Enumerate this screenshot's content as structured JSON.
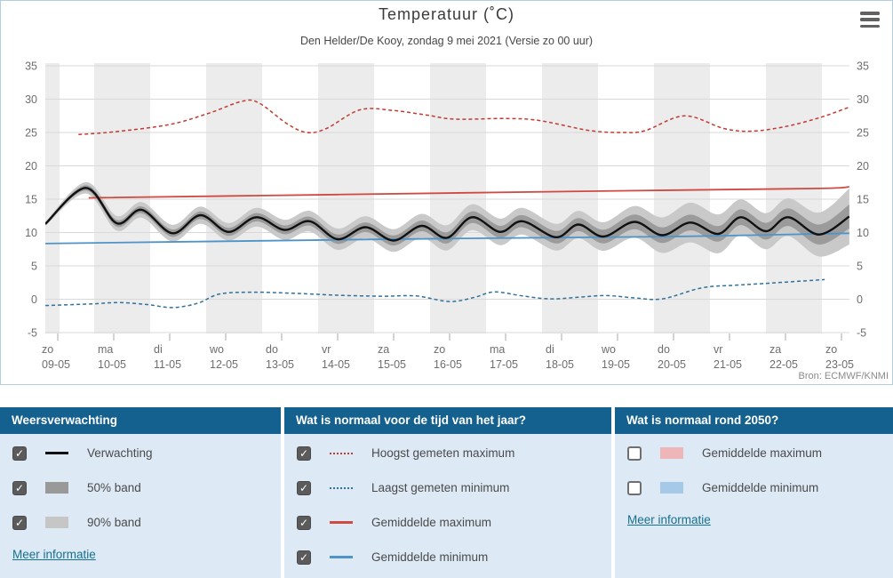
{
  "chart": {
    "title": "Temperatuur (˚C)",
    "subtitle": "Den Helder/De Kooy, zondag 9 mei 2021 (Versie zo 00 uur)",
    "source": "Bron: ECMWF/KNMI"
  },
  "chart_data": {
    "type": "line",
    "title": "Temperatuur (˚C)",
    "subtitle": "Den Helder/De Kooy, zondag 9 mei 2021 (Versie zo 00 uur)",
    "source": "Bron: ECMWF/KNMI",
    "x_unit": "dagen vanaf zo 09-05-2021 00:00",
    "ylim": [
      -5.1,
      35.4
    ],
    "yticks": [
      35,
      30,
      25,
      20,
      15,
      10,
      5,
      0,
      -5
    ],
    "grid": true,
    "stripe_color": "#ececec",
    "gridline_color": "#d9d9d9",
    "categories": [
      {
        "day": "zo",
        "date": "09-05"
      },
      {
        "day": "ma",
        "date": "10-05"
      },
      {
        "day": "di",
        "date": "11-05"
      },
      {
        "day": "wo",
        "date": "12-05"
      },
      {
        "day": "do",
        "date": "13-05"
      },
      {
        "day": "vr",
        "date": "14-05"
      },
      {
        "day": "za",
        "date": "15-05"
      },
      {
        "day": "zo",
        "date": "16-05"
      },
      {
        "day": "ma",
        "date": "17-05"
      },
      {
        "day": "di",
        "date": "18-05"
      },
      {
        "day": "wo",
        "date": "19-05"
      },
      {
        "day": "do",
        "date": "20-05"
      },
      {
        "day": "vr",
        "date": "21-05"
      },
      {
        "day": "za",
        "date": "22-05"
      },
      {
        "day": "zo",
        "date": "23-05"
      }
    ],
    "series": [
      {
        "name": "90% band",
        "type": "band",
        "around": "Verwachting",
        "color": "#c9c9c9",
        "half_width": [
          [
            -0.22,
            0.3
          ],
          [
            0.5,
            0.85
          ],
          [
            1,
            1.1
          ],
          [
            2,
            1.25
          ],
          [
            3,
            1.3
          ],
          [
            4,
            1.5
          ],
          [
            5,
            1.6
          ],
          [
            6,
            1.7
          ],
          [
            7,
            1.9
          ],
          [
            8,
            2.0
          ],
          [
            9,
            2.0
          ],
          [
            10,
            2.2
          ],
          [
            10.7,
            2.6
          ],
          [
            11.5,
            3.1
          ],
          [
            12.3,
            2.6
          ],
          [
            13,
            2.8
          ],
          [
            13.6,
            3.3
          ],
          [
            14.14,
            4.2
          ]
        ]
      },
      {
        "name": "50% band",
        "type": "band",
        "around": "Verwachting",
        "color": "#9b9b9b",
        "half_width": [
          [
            -0.22,
            0.15
          ],
          [
            0.5,
            0.4
          ],
          [
            1,
            0.5
          ],
          [
            2,
            0.55
          ],
          [
            3,
            0.6
          ],
          [
            4,
            0.65
          ],
          [
            5,
            0.7
          ],
          [
            6,
            0.75
          ],
          [
            7,
            0.85
          ],
          [
            8,
            0.9
          ],
          [
            9,
            0.95
          ],
          [
            10,
            1.05
          ],
          [
            11,
            1.2
          ],
          [
            12,
            1.15
          ],
          [
            13,
            1.3
          ],
          [
            13.6,
            1.5
          ],
          [
            14.14,
            1.8
          ]
        ]
      },
      {
        "name": "Hoogst gemeten maximum",
        "type": "line",
        "color": "#c23b32",
        "dash": "4 3",
        "width": 1.5,
        "points": [
          [
            0.37,
            24.7
          ],
          [
            1,
            25.1
          ],
          [
            2,
            26.2
          ],
          [
            2.7,
            27.9
          ],
          [
            3.3,
            29.7
          ],
          [
            3.6,
            29.4
          ],
          [
            4.1,
            26.3
          ],
          [
            4.45,
            25.0
          ],
          [
            4.8,
            25.6
          ],
          [
            5.4,
            28.4
          ],
          [
            6,
            28.3
          ],
          [
            6.6,
            27.6
          ],
          [
            7.1,
            27.0
          ],
          [
            8,
            27.1
          ],
          [
            8.6,
            26.8
          ],
          [
            9.5,
            25.3
          ],
          [
            10.1,
            25.0
          ],
          [
            10.5,
            25.3
          ],
          [
            11.2,
            27.5
          ],
          [
            11.9,
            25.6
          ],
          [
            12.4,
            25.2
          ],
          [
            13,
            25.9
          ],
          [
            13.6,
            27.2
          ],
          [
            14.14,
            28.8
          ]
        ]
      },
      {
        "name": "Laagst gemeten minimum",
        "type": "line",
        "color": "#31719b",
        "dash": "4 3",
        "width": 1.5,
        "points": [
          [
            -0.22,
            -0.95
          ],
          [
            0.6,
            -0.7
          ],
          [
            1.1,
            -0.5
          ],
          [
            1.6,
            -0.8
          ],
          [
            2.05,
            -1.25
          ],
          [
            2.5,
            -0.6
          ],
          [
            2.9,
            0.8
          ],
          [
            3.5,
            1.05
          ],
          [
            4.2,
            0.9
          ],
          [
            5,
            0.6
          ],
          [
            5.8,
            0.45
          ],
          [
            6.4,
            0.5
          ],
          [
            7.0,
            -0.35
          ],
          [
            7.45,
            0.3
          ],
          [
            7.8,
            1.1
          ],
          [
            8.3,
            0.5
          ],
          [
            8.8,
            0.05
          ],
          [
            9.3,
            0.3
          ],
          [
            9.8,
            0.55
          ],
          [
            10.3,
            0.2
          ],
          [
            10.8,
            0.05
          ],
          [
            11.5,
            1.7
          ],
          [
            12.1,
            2.1
          ],
          [
            12.7,
            2.4
          ],
          [
            13.7,
            2.95
          ]
        ]
      },
      {
        "name": "Gemiddelde maximum",
        "type": "line",
        "color": "#cf4a41",
        "width": 1.8,
        "points": [
          [
            0.55,
            15.2
          ],
          [
            5,
            15.7
          ],
          [
            10,
            16.25
          ],
          [
            13.5,
            16.6
          ],
          [
            14.14,
            16.85
          ]
        ]
      },
      {
        "name": "Gemiddelde minimum",
        "type": "line",
        "color": "#4f94c8",
        "width": 1.8,
        "points": [
          [
            -0.22,
            8.35
          ],
          [
            3,
            8.7
          ],
          [
            7,
            9.1
          ],
          [
            11,
            9.4
          ],
          [
            14.14,
            9.9
          ]
        ]
      },
      {
        "name": "Verwachting",
        "type": "line",
        "color": "#111111",
        "width": 2.4,
        "points": [
          [
            -0.22,
            11.3
          ],
          [
            0.5,
            16.7
          ],
          [
            1.05,
            11.4
          ],
          [
            1.5,
            13.4
          ],
          [
            2.05,
            9.9
          ],
          [
            2.55,
            12.6
          ],
          [
            3.05,
            10.1
          ],
          [
            3.55,
            12.3
          ],
          [
            4.05,
            10.4
          ],
          [
            4.5,
            11.7
          ],
          [
            5.0,
            9.0
          ],
          [
            5.5,
            10.8
          ],
          [
            6.0,
            8.8
          ],
          [
            6.5,
            11.0
          ],
          [
            6.95,
            9.2
          ],
          [
            7.4,
            12.3
          ],
          [
            7.9,
            10.1
          ],
          [
            8.3,
            11.7
          ],
          [
            8.9,
            9.3
          ],
          [
            9.3,
            11.2
          ],
          [
            9.75,
            9.4
          ],
          [
            10.3,
            11.6
          ],
          [
            10.8,
            9.6
          ],
          [
            11.3,
            11.5
          ],
          [
            11.8,
            9.8
          ],
          [
            12.2,
            12.3
          ],
          [
            12.65,
            10.2
          ],
          [
            13.05,
            12.3
          ],
          [
            13.6,
            9.7
          ],
          [
            14.14,
            12.4
          ]
        ]
      }
    ]
  },
  "panels": [
    {
      "title": "Weersverwachting",
      "items": [
        {
          "label": "Verwachting",
          "checked": true,
          "swatch": {
            "kind": "line",
            "color": "#111111"
          }
        },
        {
          "label": "50% band",
          "checked": true,
          "swatch": {
            "kind": "band",
            "color": "#999999"
          }
        },
        {
          "label": "90% band",
          "checked": true,
          "swatch": {
            "kind": "band",
            "color": "#c6c6c6"
          }
        }
      ],
      "link": "Meer informatie"
    },
    {
      "title": "Wat is normaal voor de tijd van het jaar?",
      "items": [
        {
          "label": "Hoogst gemeten maximum",
          "checked": true,
          "swatch": {
            "kind": "dotted",
            "color": "#c23b32"
          }
        },
        {
          "label": "Laagst gemeten minimum",
          "checked": true,
          "swatch": {
            "kind": "dotted",
            "color": "#31719b"
          }
        },
        {
          "label": "Gemiddelde maximum",
          "checked": true,
          "swatch": {
            "kind": "line",
            "color": "#cf4a41"
          }
        },
        {
          "label": "Gemiddelde minimum",
          "checked": true,
          "swatch": {
            "kind": "line",
            "color": "#4f94c8"
          }
        }
      ],
      "link": null
    },
    {
      "title": "Wat is normaal rond 2050?",
      "items": [
        {
          "label": "Gemiddelde maximum",
          "checked": false,
          "swatch": {
            "kind": "band",
            "color": "#efb6ba"
          }
        },
        {
          "label": "Gemiddelde minimum",
          "checked": false,
          "swatch": {
            "kind": "band",
            "color": "#a5c9e6"
          }
        }
      ],
      "link": "Meer informatie"
    }
  ],
  "colors": {
    "panel_header_bg": "#14618f",
    "panel_bg": "#ddeaf5",
    "link": "#17708e",
    "card_border": "#b3cee0",
    "checkbox_checked": "#5b5b5b"
  }
}
